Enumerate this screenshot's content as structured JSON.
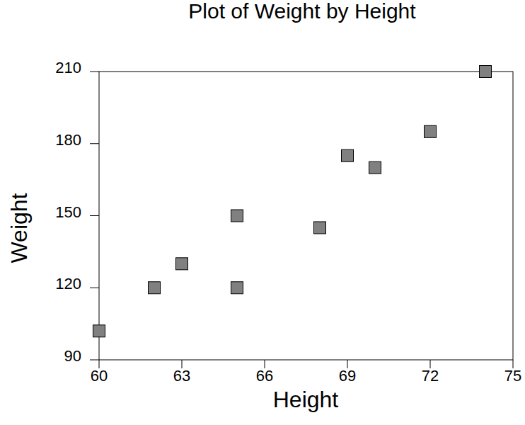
{
  "chart_data": {
    "type": "scatter",
    "title": "Plot of Weight by Height",
    "x_label": "Height",
    "y_label": "Weight",
    "x": [
      60,
      62,
      63,
      65,
      65,
      68,
      69,
      70,
      72,
      74
    ],
    "values": [
      102,
      120,
      130,
      150,
      120,
      145,
      175,
      170,
      185,
      210
    ],
    "xlim": [
      60,
      75
    ],
    "ylim": [
      90,
      210
    ],
    "xticks": [
      60,
      63,
      66,
      69,
      72,
      75
    ],
    "yticks": [
      90,
      120,
      150,
      180,
      210
    ],
    "color": "#808080",
    "marker": "square",
    "grid": false
  }
}
